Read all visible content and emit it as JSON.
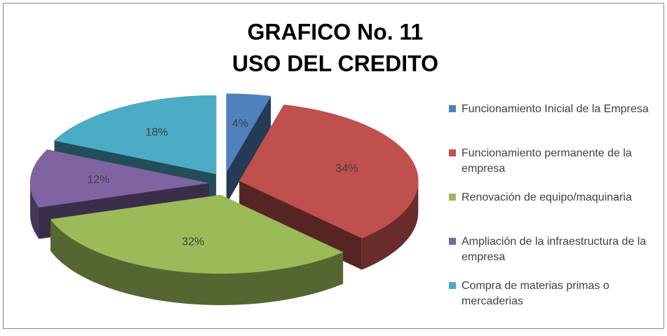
{
  "chart_data": {
    "type": "pie",
    "title": "GRAFICO No. 11",
    "subtitle": "USO DEL CREDITO",
    "categories": [
      "Funcionamiento Inicial de la Empresa",
      "Funcionamiento permanente de la empresa",
      "Renovación de equipo/maquinaria",
      "Ampliación de la infraestructura de la empresa",
      "Compra de materias primas o mercaderias"
    ],
    "values": [
      4,
      34,
      32,
      12,
      18
    ],
    "value_labels": [
      "4%",
      "34%",
      "32%",
      "12%",
      "18%"
    ],
    "colors": [
      "#4f81bd",
      "#c0504d",
      "#9bbb59",
      "#8064a2",
      "#4bacc6"
    ],
    "legend": "right"
  }
}
